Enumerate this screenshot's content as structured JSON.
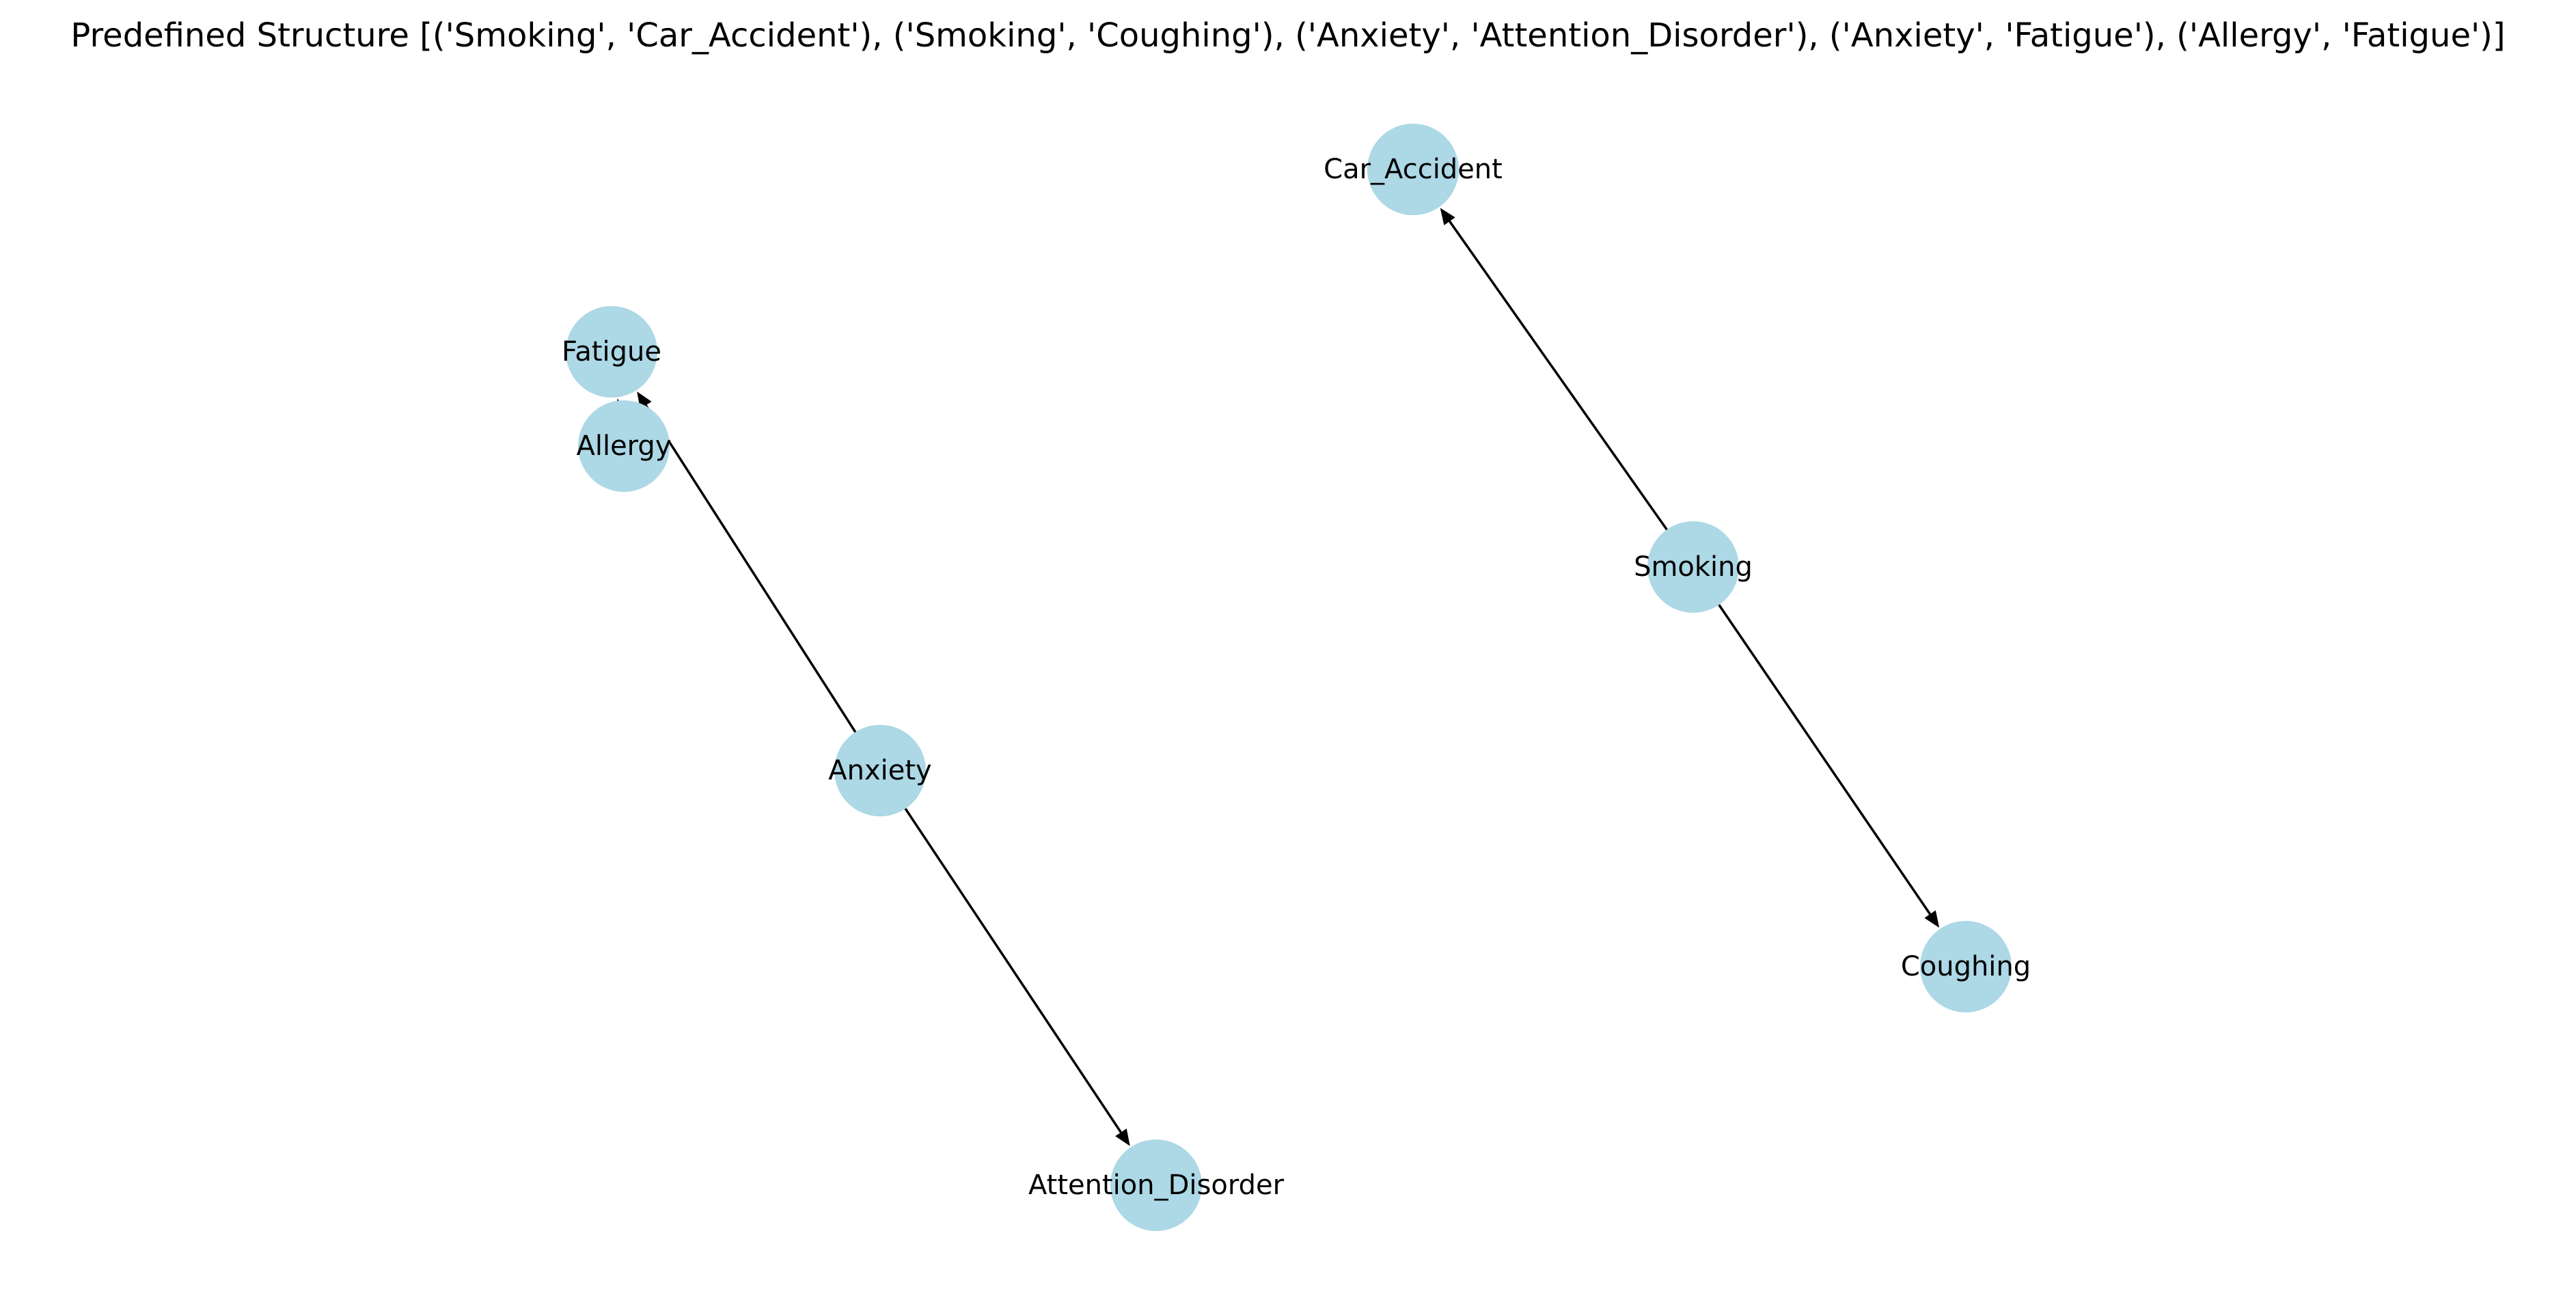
{
  "title": "Predefined Structure [('Smoking', 'Car_Accident'), ('Smoking', 'Coughing'), ('Anxiety', 'Attention_Disorder'), ('Anxiety', 'Fatigue'), ('Allergy', 'Fatigue')]",
  "colors": {
    "node_fill": "#add8e6",
    "edge": "#000000",
    "text": "#000000"
  },
  "nodes": [
    {
      "id": "Car_Accident",
      "label": "Car_Accident"
    },
    {
      "id": "Fatigue",
      "label": "Fatigue"
    },
    {
      "id": "Allergy",
      "label": "Allergy"
    },
    {
      "id": "Smoking",
      "label": "Smoking"
    },
    {
      "id": "Anxiety",
      "label": "Anxiety"
    },
    {
      "id": "Coughing",
      "label": "Coughing"
    },
    {
      "id": "Attention_Disorder",
      "label": "Attention_Disorder"
    }
  ],
  "edges": [
    {
      "source": "Smoking",
      "target": "Car_Accident"
    },
    {
      "source": "Smoking",
      "target": "Coughing"
    },
    {
      "source": "Anxiety",
      "target": "Attention_Disorder"
    },
    {
      "source": "Anxiety",
      "target": "Fatigue"
    },
    {
      "source": "Allergy",
      "target": "Fatigue"
    }
  ]
}
